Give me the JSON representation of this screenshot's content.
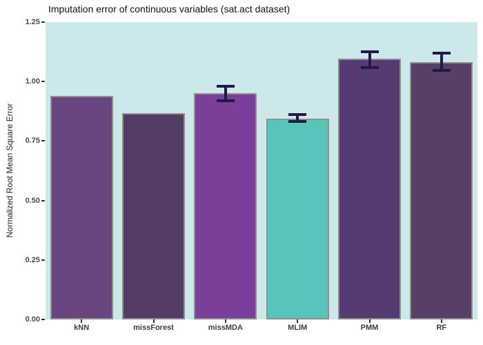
{
  "chart_data": {
    "type": "bar",
    "title": "Imputation error of continuous variables (sat.act dataset)",
    "xlabel": "",
    "ylabel": "Normalized Root Mean Square Error",
    "categories": [
      "kNN",
      "missForest",
      "missMDA",
      "MLIM",
      "PMM",
      "RF"
    ],
    "values": [
      0.94,
      0.868,
      0.95,
      0.845,
      1.095,
      1.082
    ],
    "error_bars": [
      null,
      null,
      {
        "low": 0.92,
        "high": 0.98
      },
      {
        "low": 0.832,
        "high": 0.861
      },
      {
        "low": 1.06,
        "high": 1.126
      },
      {
        "low": 1.046,
        "high": 1.12
      }
    ],
    "bar_colors": [
      "#694581",
      "#533d66",
      "#7c3f99",
      "#58c5bb",
      "#543b74",
      "#583f65"
    ],
    "ylim": [
      0,
      1.25
    ],
    "yticks": [
      0,
      0.25,
      0.5,
      0.75,
      1.0,
      1.25
    ],
    "ytick_labels": [
      "0.00",
      "0.25",
      "0.50",
      "0.75",
      "1.00",
      "1.25"
    ],
    "grid": false,
    "legend_position": "none",
    "panel_bg": "#cde8ea",
    "bar_border_color": "#8f8f8f",
    "error_bar_color": "#221a46"
  }
}
